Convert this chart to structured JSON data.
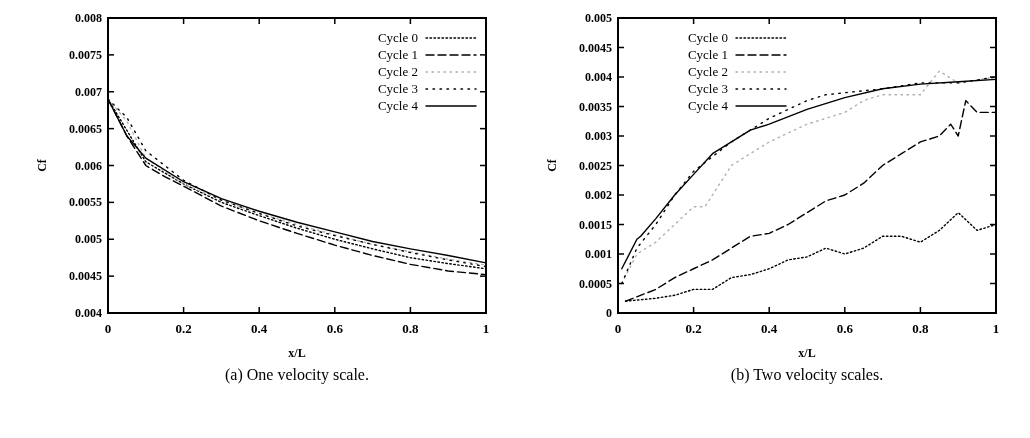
{
  "chart_data": [
    {
      "type": "line",
      "xlabel": "x/L",
      "ylabel": "Cf",
      "annotations": [
        "(a) One velocity scale."
      ],
      "xlim": [
        0,
        1
      ],
      "ylim": [
        0.004,
        0.008
      ],
      "xticks": [
        0,
        0.2,
        0.4,
        0.6,
        0.8,
        1
      ],
      "yticks": [
        0.004,
        0.0045,
        0.005,
        0.0055,
        0.006,
        0.0065,
        0.007,
        0.0075,
        0.008
      ],
      "legend": "top right",
      "grid": false,
      "series": [
        {
          "name": "Cycle 0",
          "color": "#000000",
          "line_style": "dotted",
          "x": [
            0,
            0.1,
            0.2,
            0.3,
            0.4,
            0.5,
            0.6,
            0.7,
            0.8,
            0.9,
            1
          ],
          "values": [
            0.0069,
            0.00605,
            0.00575,
            0.0055,
            0.00532,
            0.00515,
            0.005,
            0.00487,
            0.00475,
            0.00467,
            0.0046
          ]
        },
        {
          "name": "Cycle 1",
          "color": "#000000",
          "line_style": "dashed",
          "x": [
            0,
            0.05,
            0.1,
            0.15,
            0.2,
            0.3,
            0.4,
            0.5,
            0.6,
            0.7,
            0.8,
            0.9,
            1
          ],
          "values": [
            0.0069,
            0.0064,
            0.006,
            0.00585,
            0.00572,
            0.00545,
            0.00525,
            0.00508,
            0.00492,
            0.00478,
            0.00466,
            0.00457,
            0.00452
          ]
        },
        {
          "name": "Cycle 2",
          "color": "#b0b0b0",
          "line_style": "dotted",
          "x": [
            0,
            0.05,
            0.1,
            0.2,
            0.3,
            0.4,
            0.5,
            0.6,
            0.7,
            0.8,
            0.9,
            1
          ],
          "values": [
            0.0069,
            0.0066,
            0.0061,
            0.00575,
            0.00553,
            0.00535,
            0.0052,
            0.00506,
            0.00493,
            0.00483,
            0.00473,
            0.00465
          ]
        },
        {
          "name": "Cycle 3",
          "color": "#000000",
          "line_style": "dotted",
          "x": [
            0,
            0.05,
            0.1,
            0.2,
            0.3,
            0.4,
            0.5,
            0.6,
            0.7,
            0.8,
            0.9,
            1
          ],
          "values": [
            0.0069,
            0.00665,
            0.0062,
            0.0058,
            0.00553,
            0.00535,
            0.00518,
            0.00505,
            0.00493,
            0.00482,
            0.00472,
            0.00463
          ]
        },
        {
          "name": "Cycle 4",
          "color": "#000000",
          "line_style": "solid",
          "x": [
            0,
            0.05,
            0.1,
            0.2,
            0.3,
            0.4,
            0.5,
            0.6,
            0.7,
            0.8,
            0.9,
            1
          ],
          "values": [
            0.0069,
            0.0064,
            0.0061,
            0.00578,
            0.00555,
            0.00538,
            0.00523,
            0.0051,
            0.00497,
            0.00487,
            0.00478,
            0.00468
          ]
        }
      ]
    },
    {
      "type": "line",
      "xlabel": "x/L",
      "ylabel": "Cf",
      "annotations": [
        "(b) Two velocity scales."
      ],
      "xlim": [
        0,
        1
      ],
      "ylim": [
        0,
        0.005
      ],
      "xticks": [
        0,
        0.2,
        0.4,
        0.6,
        0.8,
        1
      ],
      "yticks": [
        0,
        0.0005,
        0.001,
        0.0015,
        0.002,
        0.0025,
        0.003,
        0.0035,
        0.004,
        0.0045,
        0.005
      ],
      "legend": "top left",
      "grid": false,
      "series": [
        {
          "name": "Cycle 0",
          "color": "#000000",
          "line_style": "dotted",
          "x": [
            0.02,
            0.1,
            0.15,
            0.2,
            0.25,
            0.3,
            0.35,
            0.4,
            0.45,
            0.5,
            0.55,
            0.6,
            0.65,
            0.7,
            0.75,
            0.8,
            0.85,
            0.9,
            0.95,
            1
          ],
          "values": [
            0.0002,
            0.00025,
            0.0003,
            0.0004,
            0.0004,
            0.0006,
            0.00065,
            0.00075,
            0.0009,
            0.00095,
            0.0011,
            0.001,
            0.0011,
            0.0013,
            0.0013,
            0.0012,
            0.0014,
            0.0017,
            0.0014,
            0.0015
          ]
        },
        {
          "name": "Cycle 1",
          "color": "#000000",
          "line_style": "dashed",
          "x": [
            0.02,
            0.1,
            0.15,
            0.2,
            0.25,
            0.3,
            0.35,
            0.4,
            0.45,
            0.5,
            0.55,
            0.6,
            0.65,
            0.7,
            0.75,
            0.8,
            0.85,
            0.88,
            0.9,
            0.92,
            0.95,
            1
          ],
          "values": [
            0.0002,
            0.0004,
            0.0006,
            0.00075,
            0.0009,
            0.0011,
            0.0013,
            0.00135,
            0.0015,
            0.0017,
            0.0019,
            0.002,
            0.0022,
            0.0025,
            0.0027,
            0.0029,
            0.003,
            0.0032,
            0.003,
            0.0036,
            0.0034,
            0.0034
          ]
        },
        {
          "name": "Cycle 2",
          "color": "#b0b0b0",
          "line_style": "dotted",
          "x": [
            0.01,
            0.05,
            0.1,
            0.15,
            0.2,
            0.23,
            0.3,
            0.4,
            0.5,
            0.55,
            0.6,
            0.65,
            0.7,
            0.8,
            0.85,
            0.9,
            1
          ],
          "values": [
            0.0005,
            0.001,
            0.0012,
            0.0015,
            0.0018,
            0.0018,
            0.0025,
            0.0029,
            0.0032,
            0.0033,
            0.0034,
            0.0036,
            0.0037,
            0.0037,
            0.0041,
            0.0039,
            0.004
          ]
        },
        {
          "name": "Cycle 3",
          "color": "#000000",
          "line_style": "dotted",
          "x": [
            0.01,
            0.05,
            0.1,
            0.15,
            0.2,
            0.3,
            0.4,
            0.5,
            0.55,
            0.7,
            0.8,
            0.9,
            1
          ],
          "values": [
            0.0005,
            0.0011,
            0.0015,
            0.002,
            0.0024,
            0.0029,
            0.0033,
            0.0036,
            0.0037,
            0.0038,
            0.0039,
            0.0039,
            0.004
          ]
        },
        {
          "name": "Cycle 4",
          "color": "#000000",
          "line_style": "solid",
          "x": [
            0.01,
            0.05,
            0.06,
            0.1,
            0.15,
            0.2,
            0.25,
            0.3,
            0.35,
            0.4,
            0.5,
            0.6,
            0.7,
            0.8,
            0.9,
            1
          ],
          "values": [
            0.00075,
            0.00125,
            0.0013,
            0.0016,
            0.002,
            0.00235,
            0.0027,
            0.0029,
            0.0031,
            0.0032,
            0.00345,
            0.00365,
            0.0038,
            0.00388,
            0.00392,
            0.00396
          ]
        }
      ]
    }
  ]
}
